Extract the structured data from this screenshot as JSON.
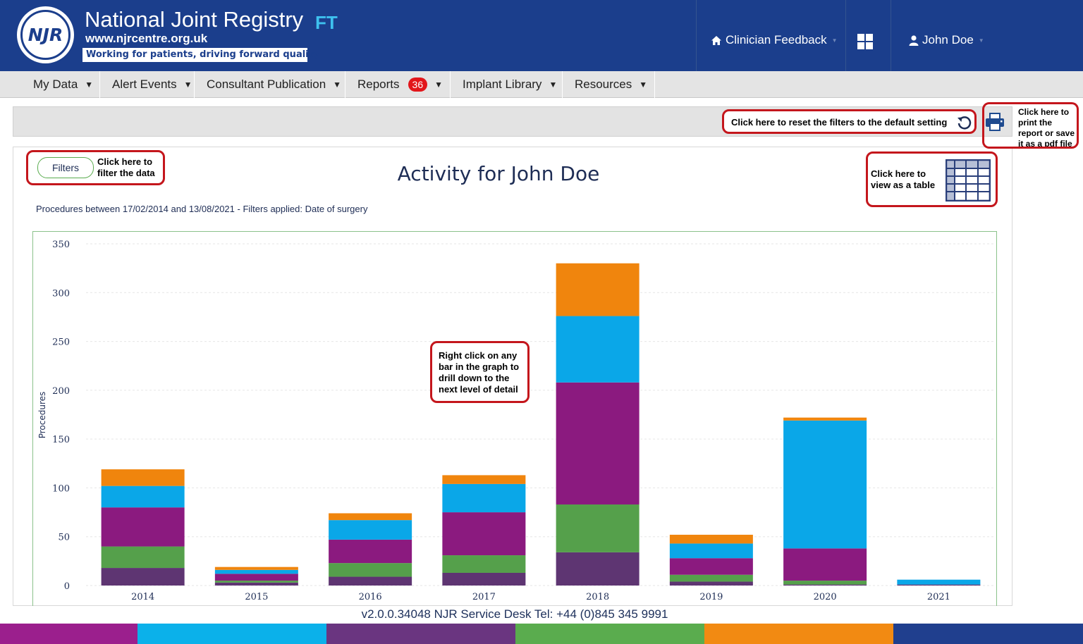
{
  "header": {
    "logo_text": "NJR",
    "title": "National Joint Registry",
    "title_suffix": "FT",
    "url": "www.njrcentre.org.uk",
    "tagline": "Working for patients, driving forward quality",
    "clinician_feedback": "Clinician Feedback",
    "user_name": "John Doe",
    "icons": [
      "home-icon",
      "grid-icon",
      "user-icon"
    ]
  },
  "nav": {
    "items": [
      {
        "label": "My Data"
      },
      {
        "label": "Alert Events"
      },
      {
        "label": "Consultant Publication"
      },
      {
        "label": "Reports",
        "badge": "36"
      },
      {
        "label": "Implant Library"
      },
      {
        "label": "Resources"
      }
    ]
  },
  "toolbar": {
    "reset_callout": "Click here to reset the filters to the default setting",
    "print_callout": "Click here to print the report or save it as a pdf file",
    "icons": [
      "reset-icon",
      "printer-icon"
    ]
  },
  "main": {
    "filters_button": "Filters",
    "filters_callout": "Click here to filter the data",
    "title": "Activity for John Doe",
    "subtitle": "Procedures between 17/02/2014 and 13/08/2021 - Filters applied: Date of surgery",
    "table_callout": "Click here to view as a table",
    "drill_callout": "Right click on any bar in the graph to drill down to the next level of detail"
  },
  "chart_data": {
    "type": "bar",
    "stacked": true,
    "categories": [
      "2014",
      "2015",
      "2016",
      "2017",
      "2018",
      "2019",
      "2020",
      "2021"
    ],
    "series": [
      {
        "color": "#5e3572",
        "values": [
          18,
          3,
          9,
          13,
          34,
          4,
          1,
          1
        ]
      },
      {
        "color": "#55a04b",
        "values": [
          22,
          2,
          14,
          18,
          49,
          7,
          4,
          0
        ]
      },
      {
        "color": "#8b1a7f",
        "values": [
          40,
          7,
          24,
          44,
          125,
          17,
          33,
          0
        ]
      },
      {
        "color": "#0aa7e8",
        "values": [
          22,
          4,
          20,
          29,
          68,
          15,
          131,
          5
        ]
      },
      {
        "color": "#f0850d",
        "values": [
          17,
          3,
          7,
          9,
          54,
          9,
          3,
          0
        ]
      }
    ],
    "ylabel": "Procedures",
    "ylim": [
      0,
      350
    ],
    "yticks": [
      "0",
      "50",
      "100",
      "150",
      "200",
      "250",
      "300",
      "350"
    ],
    "grid": true
  },
  "footer": {
    "text": "v2.0.0.34048 NJR Service Desk Tel: +44 (0)845 345 9991",
    "stripe_colors": [
      "#9b1f8d",
      "#0bb1ea",
      "#6a3580",
      "#5aac4e",
      "#f28a12",
      "#203f8e"
    ]
  }
}
